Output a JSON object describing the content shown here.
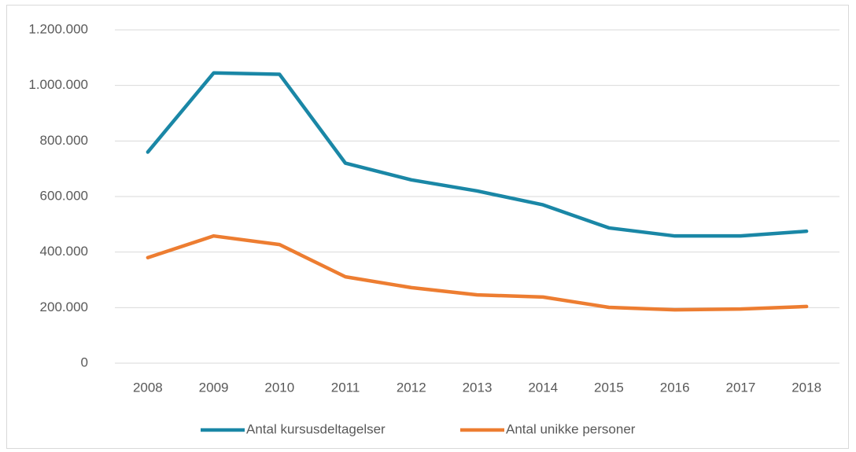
{
  "chart_data": {
    "type": "line",
    "categories": [
      "2008",
      "2009",
      "2010",
      "2011",
      "2012",
      "2013",
      "2014",
      "2015",
      "2016",
      "2017",
      "2018"
    ],
    "series": [
      {
        "name": "Antal kursusdeltagelser",
        "color": "#1a87a6",
        "values": [
          760000,
          1045000,
          1040000,
          720000,
          660000,
          620000,
          570000,
          487000,
          458000,
          458000,
          475000
        ]
      },
      {
        "name": "Antal unikke personer",
        "color": "#ed7d31",
        "values": [
          380000,
          458000,
          427000,
          311000,
          272000,
          246000,
          238000,
          201000,
          192000,
          195000,
          204000
        ]
      }
    ],
    "ylim": [
      0,
      1200000
    ],
    "yticks": [
      0,
      {
        "value": 200000,
        "label": "200.000"
      },
      {
        "value": 400000,
        "label": "400.000"
      },
      {
        "value": 600000,
        "label": "600.000"
      },
      {
        "value": 800000,
        "label": "800.000"
      },
      {
        "value": 1000000,
        "label": "1.000.000"
      },
      {
        "value": 1200000,
        "label": "1.200.000"
      }
    ],
    "grid": true,
    "legend": "bottom"
  }
}
